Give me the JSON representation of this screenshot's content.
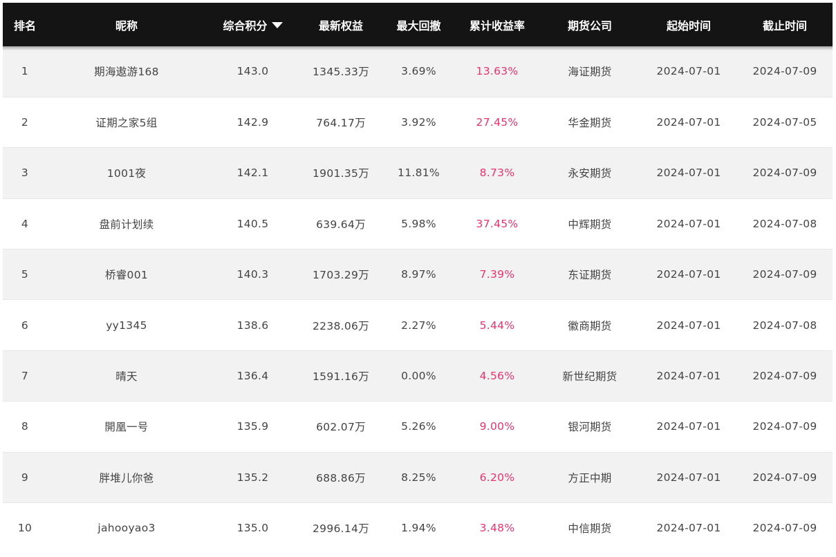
{
  "table": {
    "columns": [
      "排名",
      "昵称",
      "综合积分",
      "最新权益",
      "最大回撤",
      "累计收益率",
      "期货公司",
      "起始时间",
      "截止时间"
    ],
    "sort_icon": "caret-down-icon",
    "rows": [
      [
        "1",
        "期海遨游168",
        "143.0",
        "1345.33万",
        "3.69%",
        "13.63%",
        "海证期货",
        "2024-07-01",
        "2024-07-09"
      ],
      [
        "2",
        "证期之家5组",
        "142.9",
        "764.17万",
        "3.92%",
        "27.45%",
        "华金期货",
        "2024-07-01",
        "2024-07-05"
      ],
      [
        "3",
        "1001夜",
        "142.1",
        "1901.35万",
        "11.81%",
        "8.73%",
        "永安期货",
        "2024-07-01",
        "2024-07-09"
      ],
      [
        "4",
        "盘前计划续",
        "140.5",
        "639.64万",
        "5.98%",
        "37.45%",
        "中辉期货",
        "2024-07-01",
        "2024-07-08"
      ],
      [
        "5",
        "桥睿001",
        "140.3",
        "1703.29万",
        "8.97%",
        "7.39%",
        "东证期货",
        "2024-07-01",
        "2024-07-09"
      ],
      [
        "6",
        "yy1345",
        "138.6",
        "2238.06万",
        "2.27%",
        "5.44%",
        "徽商期货",
        "2024-07-01",
        "2024-07-08"
      ],
      [
        "7",
        "晴天",
        "136.4",
        "1591.16万",
        "0.00%",
        "4.56%",
        "新世纪期货",
        "2024-07-01",
        "2024-07-09"
      ],
      [
        "8",
        "開凰一号",
        "135.9",
        "602.07万",
        "5.26%",
        "9.00%",
        "银河期货",
        "2024-07-01",
        "2024-07-09"
      ],
      [
        "9",
        "胖堆儿你爸",
        "135.2",
        "688.86万",
        "8.25%",
        "6.20%",
        "方正中期",
        "2024-07-01",
        "2024-07-09"
      ],
      [
        "10",
        "jahooyao3",
        "135.0",
        "2996.14万",
        "1.94%",
        "3.48%",
        "中信期货",
        "2024-07-01",
        "2024-07-09"
      ]
    ]
  },
  "colors": {
    "header_bg": "#141414",
    "rate_color": "#e8336d",
    "row_alt_bg": "#f2f2f2"
  }
}
